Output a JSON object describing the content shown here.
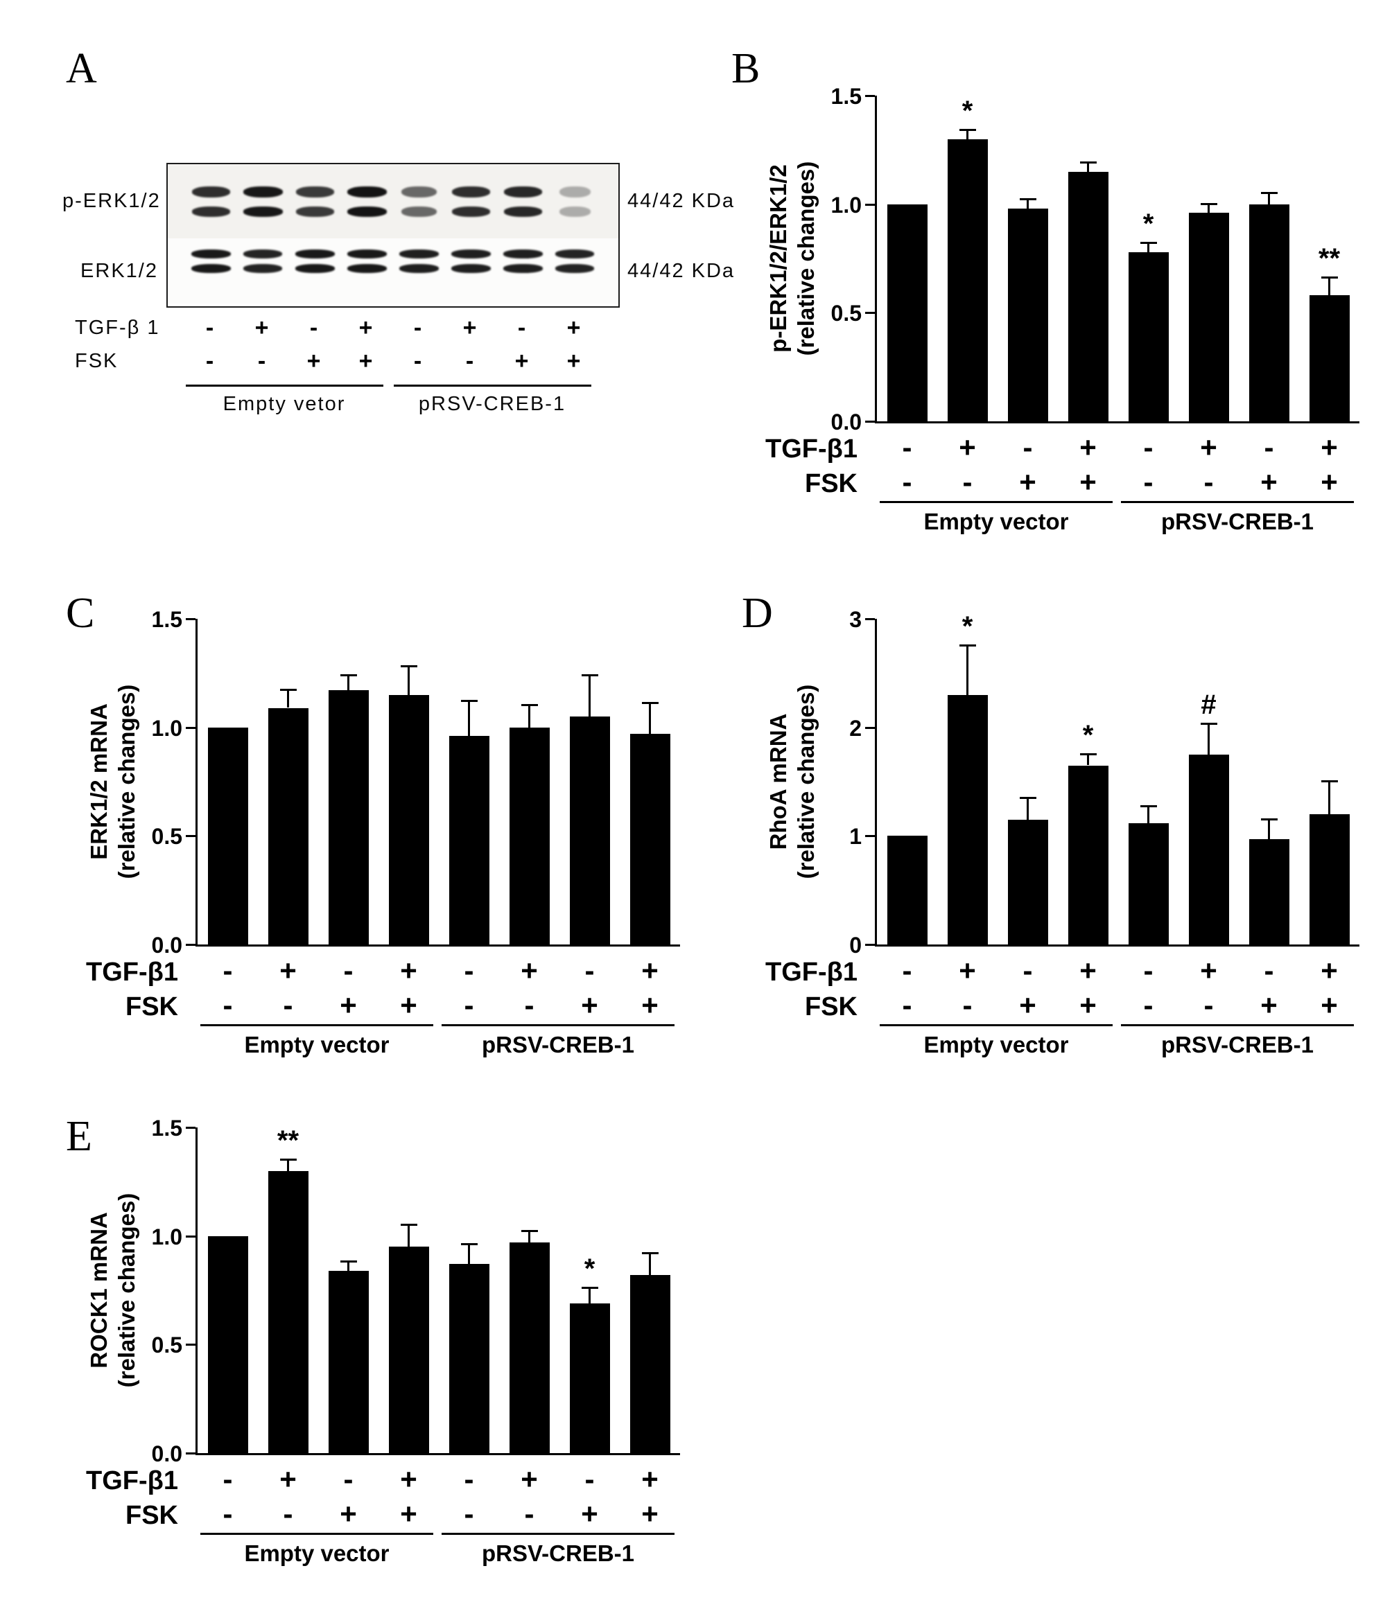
{
  "figure": {
    "background": "#ffffff",
    "bar_color": "#000000",
    "panels": [
      "A",
      "B",
      "C",
      "D",
      "E"
    ]
  },
  "panel_a": {
    "letter": "A",
    "blot_rows": [
      {
        "label": "p-ERK1/2",
        "kda_label": "44/42 KDa",
        "band_intensities": [
          0.85,
          0.95,
          0.8,
          0.97,
          0.6,
          0.85,
          0.88,
          0.3
        ]
      },
      {
        "label": "ERK1/2",
        "kda_label": "44/42 KDa",
        "band_intensities": [
          0.95,
          0.9,
          0.95,
          0.95,
          0.92,
          0.92,
          0.92,
          0.9
        ]
      }
    ],
    "x_rows": [
      {
        "label": "TGF-β 1",
        "signs": [
          "-",
          "+",
          "-",
          "+",
          "-",
          "+",
          "-",
          "+"
        ]
      },
      {
        "label": "FSK",
        "signs": [
          "-",
          "-",
          "+",
          "+",
          "-",
          "-",
          "+",
          "+"
        ]
      }
    ],
    "groups": [
      {
        "label": "Empty vetor",
        "from": 0,
        "to": 3
      },
      {
        "label": "pRSV-CREB-1",
        "from": 4,
        "to": 7
      }
    ]
  },
  "chart_data": [
    {
      "id": "B",
      "panel_letter": "B",
      "type": "bar",
      "title": "",
      "ylabel_lines": [
        "p-ERK1/2/ERK1/2",
        "(relative changes)"
      ],
      "ylim": [
        0,
        1.5
      ],
      "yticks": [
        {
          "v": 0,
          "label": "0.0"
        },
        {
          "v": 0.5,
          "label": "0.5"
        },
        {
          "v": 1.0,
          "label": "1.0"
        },
        {
          "v": 1.5,
          "label": "1.5"
        }
      ],
      "bar_color": "#000000",
      "values": [
        1.0,
        1.3,
        0.98,
        1.15,
        0.78,
        0.96,
        1.0,
        0.58
      ],
      "errors": [
        0,
        0.04,
        0.04,
        0.04,
        0.04,
        0.04,
        0.05,
        0.08
      ],
      "sig": [
        "",
        "*",
        "",
        "",
        "*",
        "",
        "",
        "**"
      ],
      "x_rows": [
        {
          "label": "TGF-β1",
          "signs": [
            "-",
            "+",
            "-",
            "+",
            "-",
            "+",
            "-",
            "+"
          ]
        },
        {
          "label": "FSK",
          "signs": [
            "-",
            "-",
            "+",
            "+",
            "-",
            "-",
            "+",
            "+"
          ]
        }
      ],
      "groups": [
        {
          "label": "Empty vector",
          "from": 0,
          "to": 3
        },
        {
          "label": "pRSV-CREB-1",
          "from": 4,
          "to": 7
        }
      ]
    },
    {
      "id": "C",
      "panel_letter": "C",
      "type": "bar",
      "title": "",
      "ylabel_lines": [
        "ERK1/2 mRNA",
        "(relative changes)"
      ],
      "ylim": [
        0,
        1.5
      ],
      "yticks": [
        {
          "v": 0,
          "label": "0.0"
        },
        {
          "v": 0.5,
          "label": "0.5"
        },
        {
          "v": 1.0,
          "label": "1.0"
        },
        {
          "v": 1.5,
          "label": "1.5"
        }
      ],
      "bar_color": "#000000",
      "values": [
        1.0,
        1.09,
        1.17,
        1.15,
        0.96,
        1.0,
        1.05,
        0.97
      ],
      "errors": [
        0,
        0.08,
        0.07,
        0.13,
        0.16,
        0.1,
        0.19,
        0.14
      ],
      "sig": [
        "",
        "",
        "",
        "",
        "",
        "",
        "",
        ""
      ],
      "x_rows": [
        {
          "label": "TGF-β1",
          "signs": [
            "-",
            "+",
            "-",
            "+",
            "-",
            "+",
            "-",
            "+"
          ]
        },
        {
          "label": "FSK",
          "signs": [
            "-",
            "-",
            "+",
            "+",
            "-",
            "-",
            "+",
            "+"
          ]
        }
      ],
      "groups": [
        {
          "label": "Empty vector",
          "from": 0,
          "to": 3
        },
        {
          "label": "pRSV-CREB-1",
          "from": 4,
          "to": 7
        }
      ]
    },
    {
      "id": "D",
      "panel_letter": "D",
      "type": "bar",
      "title": "",
      "ylabel_lines": [
        "RhoA mRNA",
        "(relative changes)"
      ],
      "ylim": [
        0,
        3
      ],
      "yticks": [
        {
          "v": 0,
          "label": "0"
        },
        {
          "v": 1,
          "label": "1"
        },
        {
          "v": 2,
          "label": "2"
        },
        {
          "v": 3,
          "label": "3"
        }
      ],
      "bar_color": "#000000",
      "values": [
        1.0,
        2.3,
        1.15,
        1.65,
        1.12,
        1.75,
        0.97,
        1.2
      ],
      "errors": [
        0,
        0.45,
        0.2,
        0.1,
        0.15,
        0.28,
        0.18,
        0.3
      ],
      "sig": [
        "",
        "*",
        "",
        "*",
        "",
        "#",
        "",
        ""
      ],
      "x_rows": [
        {
          "label": "TGF-β1",
          "signs": [
            "-",
            "+",
            "-",
            "+",
            "-",
            "+",
            "-",
            "+"
          ]
        },
        {
          "label": "FSK",
          "signs": [
            "-",
            "-",
            "+",
            "+",
            "-",
            "-",
            "+",
            "+"
          ]
        }
      ],
      "groups": [
        {
          "label": "Empty vector",
          "from": 0,
          "to": 3
        },
        {
          "label": "pRSV-CREB-1",
          "from": 4,
          "to": 7
        }
      ]
    },
    {
      "id": "E",
      "panel_letter": "E",
      "type": "bar",
      "title": "",
      "ylabel_lines": [
        "ROCK1 mRNA",
        "(relative changes)"
      ],
      "ylim": [
        0,
        1.5
      ],
      "yticks": [
        {
          "v": 0,
          "label": "0.0"
        },
        {
          "v": 0.5,
          "label": "0.5"
        },
        {
          "v": 1.0,
          "label": "1.0"
        },
        {
          "v": 1.5,
          "label": "1.5"
        }
      ],
      "bar_color": "#000000",
      "values": [
        1.0,
        1.3,
        0.84,
        0.95,
        0.87,
        0.97,
        0.69,
        0.82
      ],
      "errors": [
        0,
        0.05,
        0.04,
        0.1,
        0.09,
        0.05,
        0.07,
        0.1
      ],
      "sig": [
        "",
        "**",
        "",
        "",
        "",
        "",
        "*",
        ""
      ],
      "x_rows": [
        {
          "label": "TGF-β1",
          "signs": [
            "-",
            "+",
            "-",
            "+",
            "-",
            "+",
            "-",
            "+"
          ]
        },
        {
          "label": "FSK",
          "signs": [
            "-",
            "-",
            "+",
            "+",
            "-",
            "-",
            "+",
            "+"
          ]
        }
      ],
      "groups": [
        {
          "label": "Empty vector",
          "from": 0,
          "to": 3
        },
        {
          "label": "pRSV-CREB-1",
          "from": 4,
          "to": 7
        }
      ]
    }
  ]
}
